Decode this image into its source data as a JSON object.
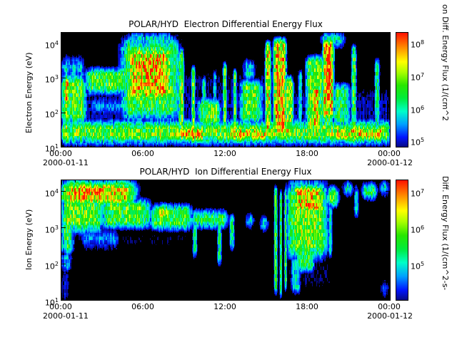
{
  "colors": {
    "background": "#ffffff",
    "axis": "#000000",
    "text": "#000000",
    "spectrogram_background": "#000000"
  },
  "chart_data": [
    {
      "type": "heatmap",
      "subtype": "spectrogram",
      "title": "POLAR/HYD  Electron Differential Energy Flux",
      "ylabel": "Electron Energy (eV)",
      "xlabel": "",
      "x_range_hours": [
        0,
        24
      ],
      "x_tick_hours": [
        0,
        6,
        12,
        18,
        24
      ],
      "x_tick_labels": [
        "00:00",
        "06:00",
        "12:00",
        "18:00",
        "00:00"
      ],
      "x_start_date": "2000-01-11",
      "x_end_date": "2000-01-12",
      "y_scale": "log",
      "y_range_log10": [
        1,
        4.3
      ],
      "y_tick_labels": [
        "10^4",
        "10^3",
        "10^2",
        "10^1"
      ],
      "grid": false,
      "colorbar": {
        "label": "on Diff. Energy Flux (1/(cm^2",
        "tick_labels": [
          "10^8",
          "10^7",
          "10^6",
          "10^5"
        ],
        "range_log10": [
          4.8,
          8.3
        ],
        "position": "right"
      },
      "colormap": {
        "cutoff": 0.12,
        "stops": [
          [
            0.12,
            [
              8,
              8,
              120
            ]
          ],
          [
            0.2,
            [
              0,
              20,
              255
            ]
          ],
          [
            0.3,
            [
              0,
              160,
              255
            ]
          ],
          [
            0.4,
            [
              0,
              255,
              200
            ]
          ],
          [
            0.5,
            [
              0,
              235,
              60
            ]
          ],
          [
            0.6,
            [
              40,
              230,
              0
            ]
          ],
          [
            0.7,
            [
              170,
              255,
              0
            ]
          ],
          [
            0.78,
            [
              255,
              255,
              0
            ]
          ],
          [
            0.88,
            [
              255,
              150,
              0
            ]
          ],
          [
            1.0,
            [
              255,
              20,
              0
            ]
          ]
        ]
      },
      "seed": 3,
      "noise": {
        "column": 0.32,
        "pixel": 0.64
      },
      "features": [
        {
          "t0": 0,
          "t1": 24,
          "e0": 1.12,
          "e1": 1.72,
          "v": 0.62,
          "st": 0.2,
          "se": 0.2
        },
        {
          "t0": 8.5,
          "t1": 10.5,
          "e0": 1.15,
          "e1": 1.6,
          "v": 0.78
        },
        {
          "t0": 12.4,
          "t1": 15.1,
          "e0": 1.15,
          "e1": 1.6,
          "v": 0.74
        },
        {
          "t0": 19.9,
          "t1": 23.6,
          "e0": 1.15,
          "e1": 1.62,
          "v": 0.74
        },
        {
          "t0": 16.3,
          "t1": 16.9,
          "e0": 1.2,
          "e1": 1.9,
          "v": 0.76
        },
        {
          "t0": 0,
          "t1": 1.8,
          "e0": 1.6,
          "e1": 3.1,
          "v": 0.56,
          "se": 0.3
        },
        {
          "t0": 0,
          "t1": 1.7,
          "e0": 3.0,
          "e1": 3.55,
          "v": 0.36,
          "se": 0.25
        },
        {
          "t0": 0.05,
          "t1": 0.7,
          "e0": 2.2,
          "e1": 3.0,
          "v": 0.72
        },
        {
          "t0": 1.8,
          "t1": 4.9,
          "e0": 2.55,
          "e1": 3.25,
          "v": 0.56,
          "st": 0.3
        },
        {
          "t0": 2.1,
          "t1": 4.6,
          "e0": 1.95,
          "e1": 2.4,
          "v": 0.3,
          "se": 0.2
        },
        {
          "t0": 4.4,
          "t1": 8.6,
          "e0": 1.8,
          "e1": 4.1,
          "v": 0.55,
          "st": 0.5,
          "se": 0.3
        },
        {
          "t0": 4.8,
          "t1": 8.2,
          "e0": 2.3,
          "e1": 3.9,
          "v": 0.8,
          "st": 0.5,
          "se": 0.25
        },
        {
          "t0": 5.4,
          "t1": 7.5,
          "e0": 2.7,
          "e1": 3.65,
          "v": 0.88,
          "st": 0.4
        },
        {
          "t0": 5.0,
          "t1": 8.2,
          "e0": 3.9,
          "e1": 4.3,
          "v": 0.37
        },
        {
          "t0": 8.55,
          "t1": 8.95,
          "e0": 1.5,
          "e1": 3.8,
          "v": 0.6,
          "st": 0.1
        },
        {
          "t0": 9.5,
          "t1": 9.78,
          "e0": 1.5,
          "e1": 3.3,
          "v": 0.52,
          "st": 0.08
        },
        {
          "t0": 10.3,
          "t1": 10.58,
          "e0": 1.5,
          "e1": 3.0,
          "v": 0.46,
          "st": 0.08
        },
        {
          "t0": 11.1,
          "t1": 11.32,
          "e0": 1.6,
          "e1": 3.2,
          "v": 0.4,
          "st": 0.08
        },
        {
          "t0": 11.8,
          "t1": 12.08,
          "e0": 1.5,
          "e1": 3.4,
          "v": 0.55,
          "st": 0.08
        },
        {
          "t0": 12.55,
          "t1": 12.8,
          "e0": 1.5,
          "e1": 3.2,
          "v": 0.5,
          "st": 0.08
        },
        {
          "t0": 10.0,
          "t1": 11.6,
          "e0": 1.6,
          "e1": 2.35,
          "v": 0.6,
          "st": 0.3
        },
        {
          "t0": 13.1,
          "t1": 14.65,
          "e0": 1.7,
          "e1": 2.9,
          "v": 0.56,
          "st": 0.3
        },
        {
          "t0": 13.3,
          "t1": 14.1,
          "e0": 2.9,
          "e1": 3.5,
          "v": 0.35
        },
        {
          "t0": 14.9,
          "t1": 15.3,
          "e0": 1.4,
          "e1": 4.0,
          "v": 0.7,
          "st": 0.1
        },
        {
          "t0": 15.5,
          "t1": 16.4,
          "e0": 1.3,
          "e1": 4.1,
          "v": 0.8,
          "st": 0.15
        },
        {
          "t0": 15.62,
          "t1": 15.88,
          "e0": 1.5,
          "e1": 4.0,
          "v": 0.97,
          "st": 0.07
        },
        {
          "t0": 16.05,
          "t1": 16.32,
          "e0": 1.4,
          "e1": 3.9,
          "v": 0.95,
          "st": 0.07
        },
        {
          "t0": 16.35,
          "t1": 16.95,
          "e0": 1.3,
          "e1": 3.0,
          "v": 0.6,
          "st": 0.15
        },
        {
          "t0": 17.3,
          "t1": 17.58,
          "e0": 1.4,
          "e1": 3.2,
          "v": 0.4,
          "st": 0.08
        },
        {
          "t0": 17.9,
          "t1": 19.15,
          "e0": 1.3,
          "e1": 3.6,
          "v": 0.6,
          "st": 0.2
        },
        {
          "t0": 18.2,
          "t1": 18.85,
          "e0": 1.5,
          "e1": 2.8,
          "v": 0.78,
          "st": 0.15
        },
        {
          "t0": 19.1,
          "t1": 19.9,
          "e0": 1.8,
          "e1": 4.1,
          "v": 0.75,
          "st": 0.12
        },
        {
          "t0": 19.3,
          "t1": 19.72,
          "e0": 2.0,
          "e1": 4.05,
          "v": 0.95,
          "st": 0.08
        },
        {
          "t0": 19.2,
          "t1": 19.85,
          "e0": 1.3,
          "e1": 2.0,
          "v": 0.55,
          "st": 0.1
        },
        {
          "t0": 19.0,
          "t1": 20.7,
          "e0": 3.9,
          "e1": 4.3,
          "v": 0.38
        },
        {
          "t0": 19.9,
          "t1": 21.05,
          "e0": 1.6,
          "e1": 2.8,
          "v": 0.5,
          "st": 0.3
        },
        {
          "t0": 21.2,
          "t1": 21.55,
          "e0": 1.4,
          "e1": 3.9,
          "v": 0.5,
          "st": 0.08
        },
        {
          "t0": 22.9,
          "t1": 23.25,
          "e0": 1.4,
          "e1": 3.5,
          "v": 0.46,
          "st": 0.08
        },
        {
          "t0": 0,
          "t1": 24,
          "e0": 1.3,
          "e1": 2.7,
          "v": 0.15,
          "se": 0.3
        },
        {
          "t0": 8.4,
          "t1": 15.6,
          "e0": 2.0,
          "e1": 3.2,
          "v": 0.13,
          "se": 0.3
        }
      ]
    },
    {
      "type": "heatmap",
      "subtype": "spectrogram",
      "title": "POLAR/HYD  Ion Differential Energy Flux",
      "ylabel": "Ion Energy (eV)",
      "xlabel": "",
      "x_range_hours": [
        0,
        24
      ],
      "x_tick_hours": [
        0,
        6,
        12,
        18,
        24
      ],
      "x_tick_labels": [
        "00:00",
        "06:00",
        "12:00",
        "18:00",
        "00:00"
      ],
      "x_start_date": "2000-01-11",
      "x_end_date": "2000-01-12",
      "y_scale": "log",
      "y_range_log10": [
        1,
        4.3
      ],
      "y_tick_labels": [
        "10^4",
        "10^3",
        "10^2",
        "10^1"
      ],
      "grid": false,
      "colorbar": {
        "label": "Diff. Energy Flux (1/(cm^2-s-",
        "tick_labels": [
          "10^7",
          "10^6",
          "10^5"
        ],
        "range_log10": [
          4.0,
          7.3
        ],
        "position": "right"
      },
      "colormap": {
        "cutoff": 0.12,
        "stops": [
          [
            0.12,
            [
              8,
              8,
              120
            ]
          ],
          [
            0.2,
            [
              0,
              20,
              255
            ]
          ],
          [
            0.3,
            [
              0,
              160,
              255
            ]
          ],
          [
            0.4,
            [
              0,
              255,
              200
            ]
          ],
          [
            0.5,
            [
              0,
              235,
              60
            ]
          ],
          [
            0.6,
            [
              40,
              230,
              0
            ]
          ],
          [
            0.7,
            [
              170,
              255,
              0
            ]
          ],
          [
            0.78,
            [
              255,
              255,
              0
            ]
          ],
          [
            0.88,
            [
              255,
              150,
              0
            ]
          ],
          [
            1.0,
            [
              255,
              20,
              0
            ]
          ]
        ]
      },
      "seed": 11,
      "noise": {
        "column": 0.3,
        "pixel": 0.6
      },
      "features": [
        {
          "t0": 0,
          "t1": 5.3,
          "e0": 3.6,
          "e1": 4.25,
          "v": 0.8,
          "st": 0.7,
          "se": 0.18
        },
        {
          "t0": 0.3,
          "t1": 3.6,
          "e0": 3.8,
          "e1": 4.2,
          "v": 0.88,
          "st": 0.5
        },
        {
          "t0": 0,
          "t1": 3.0,
          "e0": 2.9,
          "e1": 3.85,
          "v": 0.6,
          "st": 0.4,
          "se": 0.25
        },
        {
          "t0": 3.0,
          "t1": 6.5,
          "e0": 3.0,
          "e1": 3.75,
          "v": 0.56,
          "st": 0.4
        },
        {
          "t0": 6.5,
          "t1": 9.5,
          "e0": 2.95,
          "e1": 3.6,
          "v": 0.55,
          "st": 0.4
        },
        {
          "t0": 0,
          "t1": 0.85,
          "e0": 2.3,
          "e1": 3.2,
          "v": 0.5
        },
        {
          "t0": 0,
          "t1": 0.7,
          "e0": 1.8,
          "e1": 2.3,
          "v": 0.33
        },
        {
          "t0": 0.05,
          "t1": 0.55,
          "e0": 1.0,
          "e1": 1.8,
          "v": 0.2
        },
        {
          "t0": 1.5,
          "t1": 4.2,
          "e0": 2.45,
          "e1": 2.95,
          "v": 0.3,
          "se": 0.25
        },
        {
          "t0": 7.0,
          "t1": 7.9,
          "e0": 3.2,
          "e1": 3.6,
          "v": 0.74
        },
        {
          "t0": 9.5,
          "t1": 12.1,
          "e0": 3.0,
          "e1": 3.45,
          "v": 0.5,
          "st": 0.3
        },
        {
          "t0": 9.6,
          "t1": 9.9,
          "e0": 2.2,
          "e1": 3.2,
          "v": 0.45,
          "st": 0.08
        },
        {
          "t0": 11.4,
          "t1": 11.7,
          "e0": 2.0,
          "e1": 3.3,
          "v": 0.45,
          "st": 0.08
        },
        {
          "t0": 12.3,
          "t1": 12.62,
          "e0": 2.4,
          "e1": 3.35,
          "v": 0.45,
          "st": 0.08
        },
        {
          "t0": 13.5,
          "t1": 14.05,
          "e0": 3.0,
          "e1": 3.35,
          "v": 0.4
        },
        {
          "t0": 14.6,
          "t1": 15.05,
          "e0": 2.9,
          "e1": 3.3,
          "v": 0.44
        },
        {
          "t0": 15.55,
          "t1": 15.78,
          "e0": 1.2,
          "e1": 4.1,
          "v": 0.55,
          "st": 0.05
        },
        {
          "t0": 15.95,
          "t1": 16.12,
          "e0": 1.1,
          "e1": 4.0,
          "v": 0.5,
          "st": 0.05
        },
        {
          "t0": 16.3,
          "t1": 16.47,
          "e0": 1.3,
          "e1": 4.05,
          "v": 0.52,
          "st": 0.05
        },
        {
          "t0": 16.5,
          "t1": 19.4,
          "e0": 2.2,
          "e1": 4.2,
          "v": 0.6,
          "st": 0.4,
          "se": 0.3
        },
        {
          "t0": 17.0,
          "t1": 19.05,
          "e0": 3.4,
          "e1": 4.15,
          "v": 0.8,
          "st": 0.3
        },
        {
          "t0": 17.5,
          "t1": 18.65,
          "e0": 3.6,
          "e1": 4.1,
          "v": 0.9,
          "st": 0.25
        },
        {
          "t0": 16.8,
          "t1": 17.45,
          "e0": 1.2,
          "e1": 2.2,
          "v": 0.35,
          "st": 0.1
        },
        {
          "t0": 17.2,
          "t1": 18.45,
          "e0": 1.8,
          "e1": 2.6,
          "v": 0.5,
          "st": 0.2
        },
        {
          "t0": 19.4,
          "t1": 20.25,
          "e0": 3.6,
          "e1": 4.1,
          "v": 0.55,
          "st": 0.2
        },
        {
          "t0": 19.5,
          "t1": 19.78,
          "e0": 2.2,
          "e1": 3.6,
          "v": 0.38,
          "st": 0.08
        },
        {
          "t0": 20.6,
          "t1": 21.25,
          "e0": 3.9,
          "e1": 4.25,
          "v": 0.45
        },
        {
          "t0": 21.4,
          "t1": 21.72,
          "e0": 3.3,
          "e1": 4.1,
          "v": 0.35,
          "st": 0.08
        },
        {
          "t0": 22.0,
          "t1": 23.05,
          "e0": 3.8,
          "e1": 4.2,
          "v": 0.5,
          "st": 0.2
        },
        {
          "t0": 23.3,
          "t1": 23.92,
          "e0": 3.9,
          "e1": 4.25,
          "v": 0.4
        },
        {
          "t0": 23.4,
          "t1": 23.85,
          "e0": 1.1,
          "e1": 1.5,
          "v": 0.3
        },
        {
          "t0": 0,
          "t1": 9.5,
          "e0": 2.3,
          "e1": 3.0,
          "v": 0.1,
          "se": 0.3
        },
        {
          "t0": 16.5,
          "t1": 19.8,
          "e0": 1.2,
          "e1": 2.2,
          "v": 0.11,
          "se": 0.3
        }
      ]
    }
  ]
}
